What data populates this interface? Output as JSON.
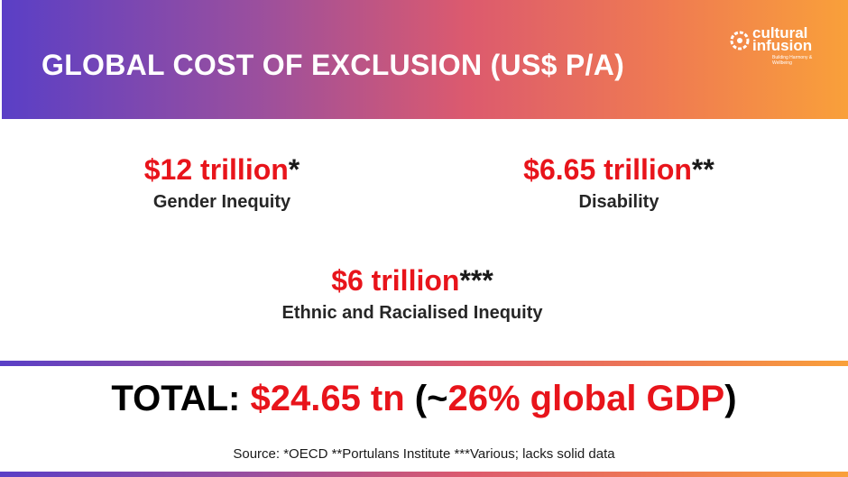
{
  "header": {
    "title": "GLOBAL COST OF EXCLUSION (US$ P/A)",
    "logo": {
      "line1": "cultural",
      "line2": "infusion",
      "tagline": "Building Harmony & Wellbeing"
    }
  },
  "items": [
    {
      "amount": "$12 trillion",
      "note": "*",
      "label": "Gender Inequity"
    },
    {
      "amount": "$6.65 trillion",
      "note": "**",
      "label": "Disability"
    },
    {
      "amount": "$6 trillion",
      "note": "***",
      "label": "Ethnic and Racialised Inequity"
    }
  ],
  "total": {
    "prefix": "TOTAL: ",
    "amount": "$24.65 tn",
    "open": " (~",
    "share": "26% global GDP",
    "close": ")"
  },
  "source": "Source: *OECD **Portulans Institute ***Various; lacks solid data"
}
